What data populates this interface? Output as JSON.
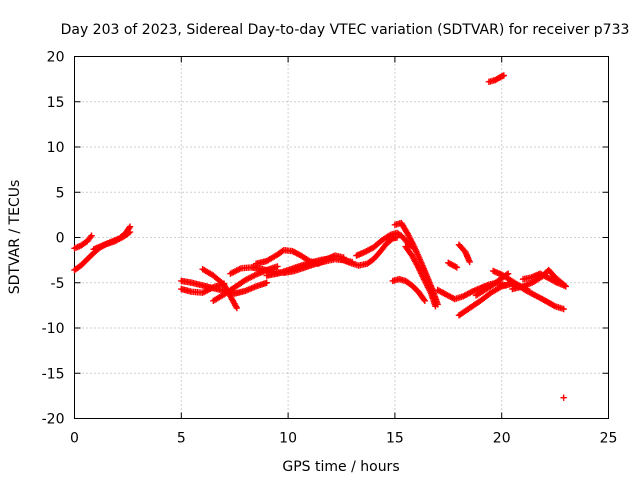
{
  "chart_data": {
    "type": "scatter",
    "title": "Day 203 of 2023, Sidereal Day-to-day VTEC variation (SDTVAR) for receiver p733",
    "xlabel": "GPS time / hours",
    "ylabel": "SDTVAR / TECUs",
    "xlim": [
      0,
      25
    ],
    "ylim": [
      -20,
      20
    ],
    "xticks": [
      0,
      5,
      10,
      15,
      20,
      25
    ],
    "yticks": [
      -20,
      -15,
      -10,
      -5,
      0,
      5,
      10,
      15,
      20
    ],
    "grid": true,
    "marker": "plus",
    "color": "#ff0000",
    "series": [
      {
        "segments": [
          [
            [
              0.0,
              -1.2
            ],
            [
              0.3,
              -0.9
            ],
            [
              0.6,
              -0.4
            ],
            [
              0.8,
              0.2
            ]
          ],
          [
            [
              0.0,
              -3.6
            ],
            [
              0.3,
              -3.1
            ],
            [
              0.6,
              -2.4
            ],
            [
              0.9,
              -1.7
            ],
            [
              1.2,
              -1.1
            ],
            [
              1.5,
              -0.7
            ],
            [
              1.8,
              -0.4
            ],
            [
              2.1,
              -0.1
            ],
            [
              2.4,
              0.5
            ],
            [
              2.6,
              1.2
            ]
          ],
          [
            [
              0.9,
              -1.3
            ],
            [
              1.4,
              -0.8
            ],
            [
              1.9,
              -0.4
            ],
            [
              2.3,
              0.1
            ],
            [
              2.6,
              0.6
            ]
          ],
          [
            [
              5.0,
              -4.8
            ],
            [
              5.5,
              -5.0
            ],
            [
              6.0,
              -5.3
            ],
            [
              6.5,
              -5.6
            ],
            [
              7.0,
              -5.9
            ],
            [
              7.5,
              -6.2
            ],
            [
              8.0,
              -5.9
            ],
            [
              8.5,
              -5.4
            ],
            [
              9.0,
              -5.0
            ]
          ],
          [
            [
              5.0,
              -5.7
            ],
            [
              5.5,
              -6.0
            ],
            [
              6.0,
              -6.1
            ],
            [
              6.5,
              -5.5
            ],
            [
              7.0,
              -5.1
            ]
          ],
          [
            [
              6.0,
              -3.5
            ],
            [
              6.5,
              -4.2
            ],
            [
              7.0,
              -5.2
            ],
            [
              7.3,
              -6.5
            ],
            [
              7.6,
              -7.8
            ]
          ],
          [
            [
              6.5,
              -7.0
            ],
            [
              7.0,
              -6.3
            ],
            [
              7.5,
              -5.5
            ],
            [
              8.0,
              -4.7
            ],
            [
              8.5,
              -4.1
            ],
            [
              9.0,
              -3.6
            ],
            [
              9.5,
              -3.2
            ]
          ],
          [
            [
              7.3,
              -4.0
            ],
            [
              7.8,
              -3.4
            ],
            [
              8.3,
              -3.3
            ],
            [
              8.8,
              -3.5
            ],
            [
              9.3,
              -3.8
            ],
            [
              9.8,
              -3.9
            ],
            [
              10.3,
              -3.7
            ],
            [
              10.8,
              -3.3
            ],
            [
              11.3,
              -2.9
            ],
            [
              11.8,
              -2.6
            ],
            [
              12.2,
              -2.4
            ],
            [
              12.6,
              -2.5
            ],
            [
              13.0,
              -2.7
            ]
          ],
          [
            [
              8.5,
              -2.9
            ],
            [
              9.0,
              -2.6
            ],
            [
              9.5,
              -1.9
            ],
            [
              9.8,
              -1.4
            ],
            [
              10.2,
              -1.5
            ],
            [
              10.6,
              -2.0
            ],
            [
              11.0,
              -2.6
            ],
            [
              11.4,
              -2.9
            ],
            [
              11.8,
              -2.4
            ],
            [
              12.2,
              -2.0
            ],
            [
              12.6,
              -2.2
            ]
          ],
          [
            [
              9.0,
              -4.2
            ],
            [
              9.5,
              -4.0
            ],
            [
              10.0,
              -3.6
            ],
            [
              10.5,
              -3.2
            ],
            [
              11.0,
              -2.8
            ],
            [
              11.5,
              -2.5
            ],
            [
              12.0,
              -2.3
            ]
          ],
          [
            [
              12.5,
              -2.4
            ],
            [
              12.9,
              -2.8
            ],
            [
              13.3,
              -3.1
            ],
            [
              13.7,
              -2.9
            ],
            [
              14.0,
              -2.4
            ],
            [
              14.3,
              -1.6
            ],
            [
              14.6,
              -0.7
            ],
            [
              14.9,
              -0.1
            ],
            [
              15.1,
              0.0
            ]
          ],
          [
            [
              13.2,
              -2.0
            ],
            [
              13.6,
              -1.6
            ],
            [
              14.0,
              -1.1
            ],
            [
              14.4,
              -0.3
            ],
            [
              14.8,
              0.3
            ],
            [
              15.1,
              0.5
            ],
            [
              15.3,
              0.2
            ],
            [
              15.6,
              -0.6
            ],
            [
              15.9,
              -1.2
            ]
          ],
          [
            [
              15.0,
              1.4
            ],
            [
              15.3,
              1.6
            ],
            [
              15.6,
              0.4
            ],
            [
              15.9,
              -1.0
            ],
            [
              16.2,
              -2.6
            ],
            [
              16.5,
              -4.3
            ],
            [
              16.8,
              -6.0
            ],
            [
              17.0,
              -7.4
            ]
          ],
          [
            [
              15.5,
              -1.0
            ],
            [
              15.8,
              -2.0
            ],
            [
              16.1,
              -3.3
            ],
            [
              16.4,
              -4.8
            ],
            [
              16.7,
              -6.2
            ],
            [
              16.9,
              -7.6
            ]
          ],
          [
            [
              14.9,
              -4.8
            ],
            [
              15.2,
              -4.6
            ],
            [
              15.5,
              -4.8
            ],
            [
              15.8,
              -5.3
            ],
            [
              16.1,
              -6.0
            ],
            [
              16.4,
              -7.0
            ]
          ],
          [
            [
              18.0,
              -0.8
            ],
            [
              18.3,
              -1.6
            ],
            [
              18.5,
              -2.7
            ]
          ],
          [
            [
              17.5,
              -2.8
            ],
            [
              17.9,
              -3.3
            ]
          ],
          [
            [
              17.0,
              -5.8
            ],
            [
              17.4,
              -6.3
            ],
            [
              17.8,
              -6.8
            ],
            [
              18.2,
              -6.5
            ],
            [
              18.6,
              -6.0
            ],
            [
              19.0,
              -5.6
            ],
            [
              19.4,
              -5.2
            ],
            [
              19.8,
              -5.0
            ],
            [
              20.2,
              -5.3
            ]
          ],
          [
            [
              18.0,
              -8.6
            ],
            [
              18.5,
              -7.8
            ],
            [
              19.0,
              -7.0
            ],
            [
              19.5,
              -6.1
            ],
            [
              20.0,
              -5.4
            ],
            [
              20.5,
              -5.1
            ]
          ],
          [
            [
              18.8,
              -6.4
            ],
            [
              19.2,
              -5.8
            ],
            [
              19.6,
              -5.2
            ],
            [
              20.0,
              -4.5
            ],
            [
              20.3,
              -4.0
            ]
          ],
          [
            [
              19.6,
              -3.7
            ],
            [
              20.0,
              -4.1
            ],
            [
              20.4,
              -4.7
            ],
            [
              20.8,
              -5.3
            ],
            [
              21.2,
              -5.7
            ]
          ],
          [
            [
              20.5,
              -5.7
            ],
            [
              21.0,
              -5.4
            ],
            [
              21.5,
              -4.9
            ],
            [
              21.9,
              -4.3
            ],
            [
              22.2,
              -3.6
            ],
            [
              22.5,
              -4.4
            ],
            [
              22.8,
              -5.0
            ],
            [
              23.0,
              -5.4
            ]
          ],
          [
            [
              20.3,
              -5.0
            ],
            [
              20.7,
              -5.2
            ],
            [
              21.1,
              -5.8
            ],
            [
              21.5,
              -6.3
            ],
            [
              21.9,
              -6.8
            ],
            [
              22.2,
              -7.2
            ],
            [
              22.5,
              -7.6
            ],
            [
              22.9,
              -7.9
            ]
          ],
          [
            [
              21.0,
              -4.6
            ],
            [
              21.4,
              -4.4
            ],
            [
              21.8,
              -4.0
            ],
            [
              22.2,
              -4.5
            ],
            [
              22.6,
              -5.0
            ],
            [
              22.9,
              -5.3
            ]
          ],
          [
            [
              19.4,
              17.2
            ],
            [
              19.7,
              17.4
            ],
            [
              20.0,
              17.8
            ],
            [
              20.1,
              17.9
            ]
          ],
          [
            [
              22.9,
              -17.7
            ]
          ]
        ]
      }
    ]
  }
}
